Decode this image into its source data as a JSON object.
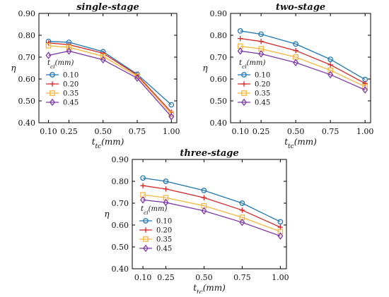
{
  "chart_data": [
    {
      "type": "line",
      "title": "single-stage",
      "xlabel": "t_tc(mm)",
      "ylabel": "η",
      "x": [
        0.1,
        0.25,
        0.5,
        0.75,
        1.0
      ],
      "x_tick_labels": [
        "0.10",
        "0.25",
        "0.50",
        "0.75",
        "1.00"
      ],
      "xlim": [
        0.03,
        1.04
      ],
      "ylim": [
        0.4,
        0.9
      ],
      "y_ticks": [
        0.4,
        0.5,
        0.6,
        0.7,
        0.8,
        0.9
      ],
      "y_tick_labels": [
        "0.40",
        "0.50",
        "0.60",
        "0.70",
        "0.80",
        "0.90"
      ],
      "legend_title": "t_cl(mm)",
      "legend_position": "lower-left",
      "series": [
        {
          "name": "0.10",
          "values": [
            0.772,
            0.768,
            0.725,
            0.622,
            0.482
          ]
        },
        {
          "name": "0.20",
          "values": [
            0.765,
            0.757,
            0.718,
            0.618,
            0.448
          ]
        },
        {
          "name": "0.35",
          "values": [
            0.752,
            0.745,
            0.704,
            0.612,
            0.44
          ]
        },
        {
          "name": "0.45",
          "values": [
            0.708,
            0.728,
            0.688,
            0.604,
            0.428
          ]
        }
      ]
    },
    {
      "type": "line",
      "title": "two-stage",
      "xlabel": "t_tc(mm)",
      "ylabel": "η",
      "x": [
        0.1,
        0.25,
        0.5,
        0.75,
        1.0
      ],
      "x_tick_labels": [
        "0.10",
        "0.25",
        "0.50",
        "0.75",
        "1.00"
      ],
      "xlim": [
        0.03,
        1.04
      ],
      "ylim": [
        0.4,
        0.9
      ],
      "y_ticks": [
        0.4,
        0.5,
        0.6,
        0.7,
        0.8,
        0.9
      ],
      "y_tick_labels": [
        "0.40",
        "0.50",
        "0.60",
        "0.70",
        "0.80",
        "0.90"
      ],
      "legend_title": "t_cl(mm)",
      "legend_position": "lower-left",
      "series": [
        {
          "name": "0.10",
          "values": [
            0.82,
            0.805,
            0.76,
            0.69,
            0.598
          ]
        },
        {
          "name": "0.20",
          "values": [
            0.785,
            0.772,
            0.73,
            0.665,
            0.58
          ]
        },
        {
          "name": "0.35",
          "values": [
            0.75,
            0.738,
            0.7,
            0.64,
            0.565
          ]
        },
        {
          "name": "0.45",
          "values": [
            0.728,
            0.715,
            0.675,
            0.62,
            0.55
          ]
        }
      ]
    },
    {
      "type": "line",
      "title": "three-stage",
      "xlabel": "t_tc(mm)",
      "ylabel": "η",
      "x": [
        0.1,
        0.25,
        0.5,
        0.75,
        1.0
      ],
      "x_tick_labels": [
        "0.10",
        "0.25",
        "0.50",
        "0.75",
        "1.00"
      ],
      "xlim": [
        0.03,
        1.04
      ],
      "ylim": [
        0.4,
        0.9
      ],
      "y_ticks": [
        0.4,
        0.5,
        0.6,
        0.7,
        0.8,
        0.9
      ],
      "y_tick_labels": [
        "0.40",
        "0.50",
        "0.60",
        "0.70",
        "0.80",
        "0.90"
      ],
      "legend_title": "t_cl(mm)",
      "legend_position": "lower-left",
      "series": [
        {
          "name": "0.10",
          "values": [
            0.815,
            0.8,
            0.758,
            0.7,
            0.615
          ]
        },
        {
          "name": "0.20",
          "values": [
            0.78,
            0.765,
            0.725,
            0.668,
            0.59
          ]
        },
        {
          "name": "0.35",
          "values": [
            0.738,
            0.725,
            0.688,
            0.635,
            0.57
          ]
        },
        {
          "name": "0.45",
          "values": [
            0.715,
            0.703,
            0.665,
            0.612,
            0.55
          ]
        }
      ]
    }
  ],
  "series_colors": [
    "#1f77b4",
    "#d62728",
    "#f5b73b",
    "#7e3aa8"
  ],
  "series_markers": [
    "circle",
    "plus",
    "square",
    "diamond"
  ]
}
